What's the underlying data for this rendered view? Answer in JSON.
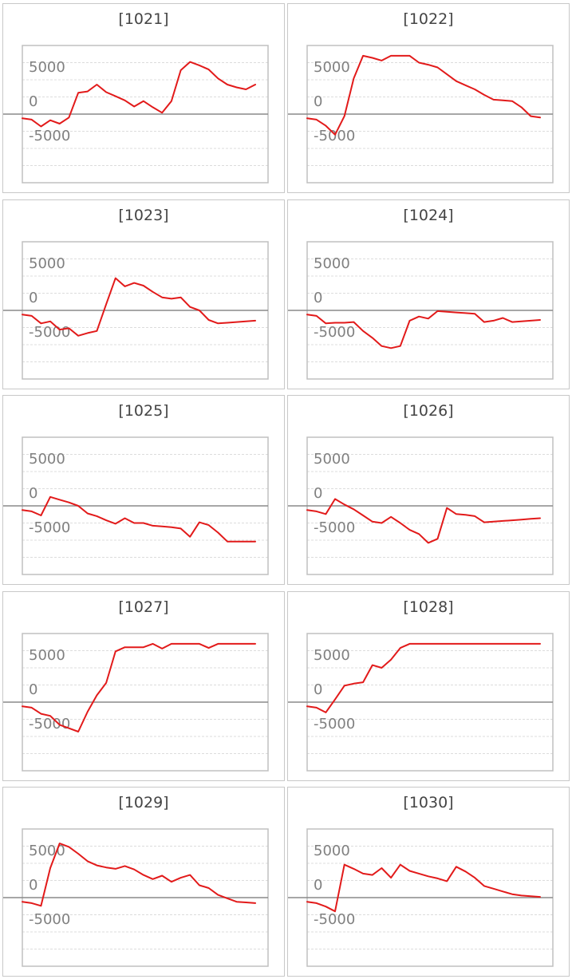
{
  "colors": {
    "line": "#e21a1a",
    "zero_line": "#8a8a8a",
    "grid": "#dcdcdc",
    "frame": "#c0c0c0",
    "tick_text": "#808080"
  },
  "chart_data": [
    {
      "type": "line",
      "title": "[1021]",
      "ylim": [
        -10000,
        10000
      ],
      "yticks": [
        5000,
        0,
        -5000
      ],
      "grid": true,
      "x": [
        0,
        1,
        2,
        3,
        4,
        5,
        6,
        7,
        8,
        9,
        10,
        11,
        12,
        13,
        14,
        15,
        16,
        17,
        18,
        19,
        20,
        21,
        22,
        23,
        24,
        25
      ],
      "y": [
        -600,
        -800,
        -1800,
        -900,
        -1400,
        -500,
        3100,
        3300,
        4300,
        3200,
        2600,
        2000,
        1100,
        1900,
        1000,
        200,
        1900,
        6400,
        7600,
        7100,
        6500,
        5200,
        4300,
        3900,
        3600,
        4300
      ]
    },
    {
      "type": "line",
      "title": "[1022]",
      "ylim": [
        -10000,
        10000
      ],
      "yticks": [
        5000,
        0,
        -5000
      ],
      "grid": true,
      "x": [
        0,
        1,
        2,
        3,
        4,
        5,
        6,
        7,
        8,
        9,
        10,
        11,
        12,
        13,
        14,
        15,
        16,
        17,
        18,
        19,
        20,
        21,
        22,
        23,
        24,
        25
      ],
      "y": [
        -600,
        -800,
        -1700,
        -3000,
        -300,
        5200,
        8500,
        8200,
        7800,
        8500,
        8500,
        8500,
        7500,
        7200,
        6800,
        5800,
        4800,
        4200,
        3600,
        2800,
        2100,
        2000,
        1900,
        1000,
        -300,
        -500
      ]
    },
    {
      "type": "line",
      "title": "[1023]",
      "ylim": [
        -10000,
        10000
      ],
      "yticks": [
        5000,
        0,
        -5000
      ],
      "grid": true,
      "x": [
        0,
        1,
        2,
        3,
        4,
        5,
        6,
        7,
        8,
        9,
        10,
        11,
        12,
        13,
        14,
        15,
        16,
        17,
        18,
        19,
        20,
        21,
        22,
        23,
        24,
        25
      ],
      "y": [
        -600,
        -800,
        -1900,
        -1600,
        -2800,
        -2600,
        -3700,
        -3300,
        -3000,
        900,
        4700,
        3500,
        4000,
        3600,
        2700,
        1900,
        1700,
        1900,
        500,
        0,
        -1400,
        -1900,
        -1800,
        -1700,
        -1600,
        -1500
      ]
    },
    {
      "type": "line",
      "title": "[1024]",
      "ylim": [
        -10000,
        10000
      ],
      "yticks": [
        5000,
        0,
        -5000
      ],
      "grid": true,
      "x": [
        0,
        1,
        2,
        3,
        4,
        5,
        6,
        7,
        8,
        9,
        10,
        11,
        12,
        13,
        14,
        15,
        16,
        17,
        18,
        19,
        20,
        21,
        22,
        23,
        24,
        25
      ],
      "y": [
        -600,
        -800,
        -1900,
        -1800,
        -1800,
        -1700,
        -3000,
        -4000,
        -5200,
        -5500,
        -5200,
        -1500,
        -900,
        -1200,
        -100,
        -200,
        -300,
        -400,
        -500,
        -1700,
        -1500,
        -1100,
        -1700,
        -1600,
        -1500,
        -1400
      ]
    },
    {
      "type": "line",
      "title": "[1025]",
      "ylim": [
        -10000,
        10000
      ],
      "yticks": [
        5000,
        0,
        -5000
      ],
      "grid": true,
      "x": [
        0,
        1,
        2,
        3,
        4,
        5,
        6,
        7,
        8,
        9,
        10,
        11,
        12,
        13,
        14,
        15,
        16,
        17,
        18,
        19,
        20,
        21,
        22,
        23,
        24,
        25
      ],
      "y": [
        -600,
        -800,
        -1400,
        1300,
        900,
        500,
        0,
        -1100,
        -1500,
        -2100,
        -2600,
        -1800,
        -2500,
        -2500,
        -2900,
        -3000,
        -3100,
        -3300,
        -4500,
        -2400,
        -2800,
        -3900,
        -5200,
        -5200,
        -5200,
        -5200
      ]
    },
    {
      "type": "line",
      "title": "[1026]",
      "ylim": [
        -10000,
        10000
      ],
      "yticks": [
        5000,
        0,
        -5000
      ],
      "grid": true,
      "x": [
        0,
        1,
        2,
        3,
        4,
        5,
        6,
        7,
        8,
        9,
        10,
        11,
        12,
        13,
        14,
        15,
        16,
        17,
        18,
        19,
        20,
        21,
        22,
        23,
        24,
        25
      ],
      "y": [
        -600,
        -800,
        -1200,
        1000,
        200,
        -500,
        -1400,
        -2300,
        -2500,
        -1600,
        -2500,
        -3500,
        -4100,
        -5400,
        -4800,
        -300,
        -1200,
        -1300,
        -1500,
        -2400,
        -2300,
        -2200,
        -2100,
        -2000,
        -1900,
        -1800
      ]
    },
    {
      "type": "line",
      "title": "[1027]",
      "ylim": [
        -10000,
        10000
      ],
      "yticks": [
        5000,
        0,
        -5000
      ],
      "grid": true,
      "x": [
        0,
        1,
        2,
        3,
        4,
        5,
        6,
        7,
        8,
        9,
        10,
        11,
        12,
        13,
        14,
        15,
        16,
        17,
        18,
        19,
        20,
        21,
        22,
        23,
        24,
        25
      ],
      "y": [
        -600,
        -800,
        -1700,
        -2000,
        -3300,
        -3800,
        -4300,
        -1400,
        1000,
        2800,
        7400,
        8000,
        8000,
        8000,
        8500,
        7800,
        8500,
        8500,
        8500,
        8500,
        7900,
        8500,
        8500,
        8500,
        8500,
        8500
      ]
    },
    {
      "type": "line",
      "title": "[1028]",
      "ylim": [
        -10000,
        10000
      ],
      "yticks": [
        5000,
        0,
        -5000
      ],
      "grid": true,
      "x": [
        0,
        1,
        2,
        3,
        4,
        5,
        6,
        7,
        8,
        9,
        10,
        11,
        12,
        13,
        14,
        15,
        16,
        17,
        18,
        19,
        20,
        21,
        22,
        23,
        24,
        25
      ],
      "y": [
        -600,
        -800,
        -1500,
        400,
        2400,
        2700,
        2900,
        5400,
        5000,
        6200,
        7900,
        8500,
        8500,
        8500,
        8500,
        8500,
        8500,
        8500,
        8500,
        8500,
        8500,
        8500,
        8500,
        8500,
        8500,
        8500
      ]
    },
    {
      "type": "line",
      "title": "[1029]",
      "ylim": [
        -10000,
        10000
      ],
      "yticks": [
        5000,
        0,
        -5000
      ],
      "grid": true,
      "x": [
        0,
        1,
        2,
        3,
        4,
        5,
        6,
        7,
        8,
        9,
        10,
        11,
        12,
        13,
        14,
        15,
        16,
        17,
        18,
        19,
        20,
        21,
        22,
        23,
        24,
        25
      ],
      "y": [
        -600,
        -800,
        -1200,
        4300,
        7900,
        7400,
        6400,
        5300,
        4700,
        4400,
        4200,
        4600,
        4100,
        3300,
        2700,
        3200,
        2300,
        2900,
        3300,
        1800,
        1400,
        400,
        -100,
        -600,
        -700,
        -800
      ]
    },
    {
      "type": "line",
      "title": "[1030]",
      "ylim": [
        -10000,
        10000
      ],
      "yticks": [
        5000,
        0,
        -5000
      ],
      "grid": true,
      "x": [
        0,
        1,
        2,
        3,
        4,
        5,
        6,
        7,
        8,
        9,
        10,
        11,
        12,
        13,
        14,
        15,
        16,
        17,
        18,
        19,
        20,
        21,
        22,
        23,
        24,
        25
      ],
      "y": [
        -600,
        -800,
        -1300,
        -2000,
        4800,
        4200,
        3500,
        3300,
        4300,
        2900,
        4800,
        3900,
        3500,
        3100,
        2800,
        2400,
        4500,
        3800,
        2900,
        1700,
        1300,
        900,
        500,
        300,
        200,
        100
      ]
    }
  ]
}
